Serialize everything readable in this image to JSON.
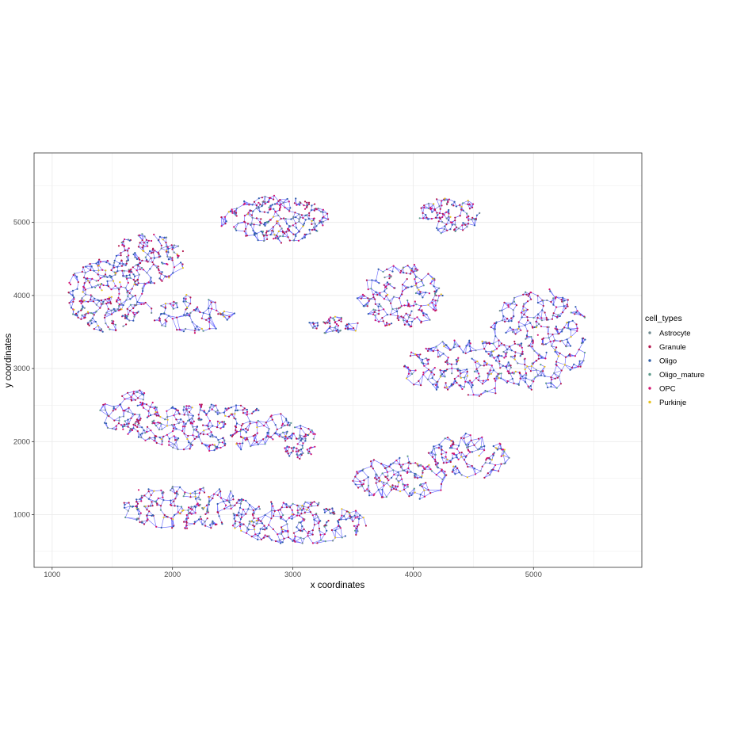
{
  "chart_data": {
    "type": "scatter",
    "title": "",
    "xlabel": "x coordinates",
    "ylabel": "y coordinates",
    "xlim": [
      850,
      5900
    ],
    "ylim": [
      280,
      5950
    ],
    "x_ticks": [
      1000,
      2000,
      3000,
      4000,
      5000
    ],
    "y_ticks": [
      1000,
      2000,
      3000,
      4000,
      5000
    ],
    "grid": true,
    "edge_color": "#2b2bff",
    "legend": {
      "title": "cell_types",
      "placement": "right",
      "entries": [
        {
          "name": "Astrocyte",
          "color": "#6e8a8f"
        },
        {
          "name": "Granule",
          "color": "#b5164d"
        },
        {
          "name": "Oligo",
          "color": "#2f5ea8"
        },
        {
          "name": "Oligo_mature",
          "color": "#5c9b8a"
        },
        {
          "name": "OPC",
          "color": "#d4136e"
        },
        {
          "name": "Purkinje",
          "color": "#e8c21a"
        }
      ]
    },
    "clusters": [
      {
        "cx": 1450,
        "cy": 4000,
        "rx": 330,
        "ry": 500,
        "n": 260
      },
      {
        "cx": 1800,
        "cy": 4500,
        "rx": 300,
        "ry": 350,
        "n": 160
      },
      {
        "cx": 2850,
        "cy": 5050,
        "rx": 450,
        "ry": 320,
        "n": 250
      },
      {
        "cx": 2150,
        "cy": 3750,
        "rx": 350,
        "ry": 250,
        "n": 90
      },
      {
        "cx": 3900,
        "cy": 4000,
        "rx": 350,
        "ry": 450,
        "n": 190
      },
      {
        "cx": 4300,
        "cy": 5100,
        "rx": 260,
        "ry": 250,
        "n": 110
      },
      {
        "cx": 5050,
        "cy": 3400,
        "rx": 400,
        "ry": 700,
        "n": 280
      },
      {
        "cx": 4450,
        "cy": 3000,
        "rx": 550,
        "ry": 400,
        "n": 220
      },
      {
        "cx": 2300,
        "cy": 2200,
        "rx": 700,
        "ry": 320,
        "n": 300
      },
      {
        "cx": 1650,
        "cy": 2400,
        "rx": 250,
        "ry": 300,
        "n": 90
      },
      {
        "cx": 2100,
        "cy": 1100,
        "rx": 550,
        "ry": 300,
        "n": 220
      },
      {
        "cx": 3050,
        "cy": 900,
        "rx": 550,
        "ry": 300,
        "n": 230
      },
      {
        "cx": 3900,
        "cy": 1500,
        "rx": 400,
        "ry": 300,
        "n": 140
      },
      {
        "cx": 4450,
        "cy": 1800,
        "rx": 350,
        "ry": 300,
        "n": 130
      },
      {
        "cx": 3350,
        "cy": 3600,
        "rx": 200,
        "ry": 120,
        "n": 50
      },
      {
        "cx": 3050,
        "cy": 2000,
        "rx": 150,
        "ry": 250,
        "n": 70
      }
    ]
  }
}
